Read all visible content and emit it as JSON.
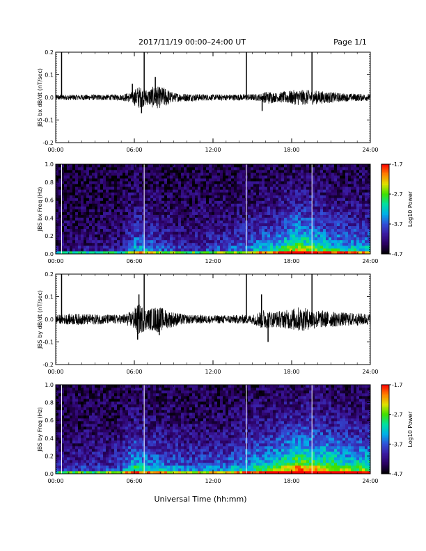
{
  "header": {
    "title": "2017/11/19   00:00–24:00 UT",
    "page": "Page 1/1"
  },
  "x_axis_label": "Universal Time (hh:mm)",
  "colors": {
    "trace": "#000000",
    "colormap": [
      "#000000",
      "#2a0060",
      "#3a1aa0",
      "#3050d8",
      "#00b0e8",
      "#00e0a0",
      "#40e000",
      "#e0e000",
      "#ff8000",
      "#ff0000"
    ]
  },
  "chart_data": [
    {
      "type": "line",
      "ylabel": "JBS bx dB/dt (nT/sec)",
      "xlim": [
        0,
        24
      ],
      "ylim": [
        -0.2,
        0.2
      ],
      "x_ticks": [
        "00:00",
        "06:00",
        "12:00",
        "18:00",
        "24:00"
      ],
      "y_ticks": [
        "0.2",
        "0.1",
        "0.0",
        "-0.1",
        "-0.2"
      ],
      "y_tick_values": [
        0.2,
        0.1,
        0.0,
        -0.1,
        -0.2
      ],
      "noise_envelope": [
        [
          0,
          0.012
        ],
        [
          5,
          0.013
        ],
        [
          5.8,
          0.025
        ],
        [
          6.3,
          0.05
        ],
        [
          7,
          0.035
        ],
        [
          7.5,
          0.05
        ],
        [
          8.3,
          0.045
        ],
        [
          9,
          0.02
        ],
        [
          12,
          0.013
        ],
        [
          15.5,
          0.015
        ],
        [
          16.2,
          0.03
        ],
        [
          16.8,
          0.02
        ],
        [
          17.3,
          0.025
        ],
        [
          18.5,
          0.035
        ],
        [
          20,
          0.03
        ],
        [
          22,
          0.018
        ],
        [
          24,
          0.015
        ]
      ],
      "spikes": [
        {
          "x": 0.45,
          "y": 0.2
        },
        {
          "x": 6.75,
          "y": 0.2
        },
        {
          "x": 6.55,
          "y": -0.07
        },
        {
          "x": 14.55,
          "y": 0.2
        },
        {
          "x": 19.55,
          "y": 0.2
        },
        {
          "x": 5.85,
          "y": 0.06
        },
        {
          "x": 15.75,
          "y": -0.06
        },
        {
          "x": 7.6,
          "y": 0.09
        }
      ]
    },
    {
      "type": "heatmap",
      "ylabel": "JBS bx Freq (Hz)",
      "xlim": [
        0,
        24
      ],
      "ylim": [
        0.0,
        1.0
      ],
      "x_ticks": [
        "00:00",
        "06:00",
        "12:00",
        "18:00",
        "24:00"
      ],
      "y_ticks": [
        "1.0",
        "0.8",
        "0.6",
        "0.4",
        "0.2",
        "0.0"
      ],
      "y_tick_values": [
        1.0,
        0.8,
        0.6,
        0.4,
        0.2,
        0.0
      ],
      "colorbar": {
        "label": "Log10 Power",
        "ticks": [
          "-1.7",
          "-2.7",
          "-3.7",
          "-4.7"
        ],
        "tick_values": [
          -1.7,
          -2.7,
          -3.7,
          -4.7
        ],
        "range": [
          -4.7,
          -1.7
        ]
      },
      "gap_lines": [
        0.45,
        6.75,
        14.55,
        19.55
      ],
      "activity": [
        [
          0,
          0.1
        ],
        [
          5,
          0.15
        ],
        [
          6,
          0.45
        ],
        [
          7,
          0.4
        ],
        [
          8,
          0.3
        ],
        [
          10,
          0.2
        ],
        [
          13,
          0.3
        ],
        [
          15,
          0.4
        ],
        [
          17,
          0.55
        ],
        [
          18.5,
          0.8
        ],
        [
          19.5,
          0.7
        ],
        [
          21,
          0.55
        ],
        [
          24,
          0.45
        ]
      ]
    },
    {
      "type": "line",
      "ylabel": "JBS by dB/dt (nT/sec)",
      "xlim": [
        0,
        24
      ],
      "ylim": [
        -0.2,
        0.2
      ],
      "x_ticks": [
        "00:00",
        "06:00",
        "12:00",
        "18:00",
        "24:00"
      ],
      "y_ticks": [
        "0.2",
        "0.1",
        "0.0",
        "-0.1",
        "-0.2"
      ],
      "y_tick_values": [
        0.2,
        0.1,
        0.0,
        -0.1,
        -0.2
      ],
      "noise_envelope": [
        [
          0,
          0.02
        ],
        [
          1.5,
          0.025
        ],
        [
          5,
          0.02
        ],
        [
          5.8,
          0.035
        ],
        [
          6.3,
          0.07
        ],
        [
          7,
          0.045
        ],
        [
          7.8,
          0.06
        ],
        [
          8.5,
          0.04
        ],
        [
          10,
          0.02
        ],
        [
          12,
          0.018
        ],
        [
          15,
          0.02
        ],
        [
          15.8,
          0.045
        ],
        [
          16.6,
          0.035
        ],
        [
          17.5,
          0.04
        ],
        [
          18.5,
          0.055
        ],
        [
          20,
          0.04
        ],
        [
          22,
          0.03
        ],
        [
          24,
          0.025
        ]
      ],
      "spikes": [
        {
          "x": 0.45,
          "y": 0.2
        },
        {
          "x": 6.75,
          "y": 0.2
        },
        {
          "x": 14.55,
          "y": 0.2
        },
        {
          "x": 19.55,
          "y": 0.2
        },
        {
          "x": 6.35,
          "y": 0.11
        },
        {
          "x": 6.25,
          "y": -0.09
        },
        {
          "x": 16.2,
          "y": -0.1
        },
        {
          "x": 15.7,
          "y": 0.11
        },
        {
          "x": 7.9,
          "y": -0.07
        }
      ]
    },
    {
      "type": "heatmap",
      "ylabel": "JBS by Freq (Hz)",
      "xlim": [
        0,
        24
      ],
      "ylim": [
        0.0,
        1.0
      ],
      "x_ticks": [
        "00:00",
        "06:00",
        "12:00",
        "18:00",
        "24:00"
      ],
      "y_ticks": [
        "1.0",
        "0.8",
        "0.6",
        "0.4",
        "0.2",
        "0.0"
      ],
      "y_tick_values": [
        1.0,
        0.8,
        0.6,
        0.4,
        0.2,
        0.0
      ],
      "colorbar": {
        "label": "Log10 Power",
        "ticks": [
          "-1.7",
          "-2.7",
          "-3.7",
          "-4.7"
        ],
        "tick_values": [
          -1.7,
          -2.7,
          -3.7,
          -4.7
        ],
        "range": [
          -4.7,
          -1.7
        ]
      },
      "gap_lines": [
        0.45,
        6.75,
        14.55,
        19.55
      ],
      "activity": [
        [
          0,
          0.2
        ],
        [
          3,
          0.25
        ],
        [
          5,
          0.3
        ],
        [
          6,
          0.6
        ],
        [
          7,
          0.5
        ],
        [
          8,
          0.45
        ],
        [
          10,
          0.35
        ],
        [
          13,
          0.4
        ],
        [
          15,
          0.55
        ],
        [
          17,
          0.7
        ],
        [
          18.5,
          0.95
        ],
        [
          20,
          0.85
        ],
        [
          22,
          0.7
        ],
        [
          24,
          0.65
        ]
      ]
    }
  ]
}
